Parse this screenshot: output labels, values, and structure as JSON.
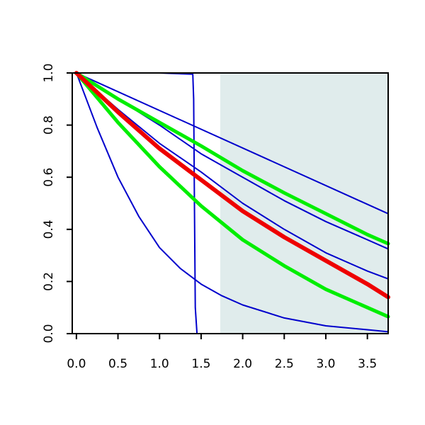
{
  "chart_data": {
    "type": "line",
    "title": "",
    "xlabel": "",
    "ylabel": "",
    "xlim": [
      -0.05,
      3.75
    ],
    "ylim": [
      0.0,
      1.0
    ],
    "x_ticks": [
      "0.0",
      "0.5",
      "1.0",
      "1.5",
      "2.0",
      "2.5",
      "3.0",
      "3.5"
    ],
    "y_ticks": [
      "0.0",
      "0.2",
      "0.4",
      "0.6",
      "0.8",
      "1.0"
    ],
    "grid": false,
    "legend": "none",
    "shaded_region": {
      "x_from": 1.73,
      "x_to": 3.75,
      "color": "#e0ecec"
    },
    "series": [
      {
        "color": "#0000cc",
        "width": 2,
        "x": [
          0,
          1.0,
          1.4,
          1.41,
          1.42,
          1.43,
          1.45,
          3.75
        ],
        "y": [
          1.0,
          1.0,
          0.995,
          0.9,
          0.5,
          0.1,
          0.0,
          0.0
        ]
      },
      {
        "color": "#0000cc",
        "width": 2,
        "x": [
          0,
          0.25,
          0.5,
          0.75,
          1.0,
          1.25,
          1.5,
          1.75,
          2.0,
          2.5,
          3.0,
          3.5,
          3.75
        ],
        "y": [
          1.0,
          0.79,
          0.6,
          0.45,
          0.33,
          0.25,
          0.19,
          0.145,
          0.11,
          0.06,
          0.03,
          0.015,
          0.007
        ]
      },
      {
        "color": "#0000cc",
        "width": 2,
        "x": [
          0,
          0.5,
          1.0,
          1.5,
          2.0,
          2.5,
          3.0,
          3.5,
          3.75
        ],
        "y": [
          1.0,
          0.86,
          0.73,
          0.62,
          0.5,
          0.4,
          0.31,
          0.24,
          0.21
        ]
      },
      {
        "color": "#0000cc",
        "width": 2,
        "x": [
          0,
          0.5,
          1.0,
          1.5,
          2.0,
          2.5,
          3.0,
          3.5,
          3.75
        ],
        "y": [
          1.0,
          0.9,
          0.8,
          0.69,
          0.6,
          0.51,
          0.43,
          0.36,
          0.325
        ]
      },
      {
        "color": "#0000cc",
        "width": 2,
        "x": [
          0,
          3.75
        ],
        "y": [
          1.0,
          0.46
        ]
      },
      {
        "color": "#00ee00",
        "width": 5,
        "x": [
          0,
          0.5,
          1.0,
          1.5,
          2.0,
          2.5,
          3.0,
          3.5,
          3.75
        ],
        "y": [
          1.0,
          0.9,
          0.81,
          0.72,
          0.625,
          0.54,
          0.46,
          0.38,
          0.345
        ]
      },
      {
        "color": "#00ee00",
        "width": 5,
        "x": [
          0,
          0.5,
          1.0,
          1.5,
          2.0,
          2.5,
          3.0,
          3.5,
          3.75
        ],
        "y": [
          1.0,
          0.81,
          0.64,
          0.49,
          0.36,
          0.26,
          0.17,
          0.1,
          0.065
        ]
      },
      {
        "color": "#ee0000",
        "width": 6,
        "x": [
          0,
          0.5,
          1.0,
          1.5,
          2.0,
          2.5,
          3.0,
          3.5,
          3.75
        ],
        "y": [
          1.0,
          0.85,
          0.71,
          0.59,
          0.47,
          0.37,
          0.28,
          0.19,
          0.14
        ]
      }
    ]
  }
}
